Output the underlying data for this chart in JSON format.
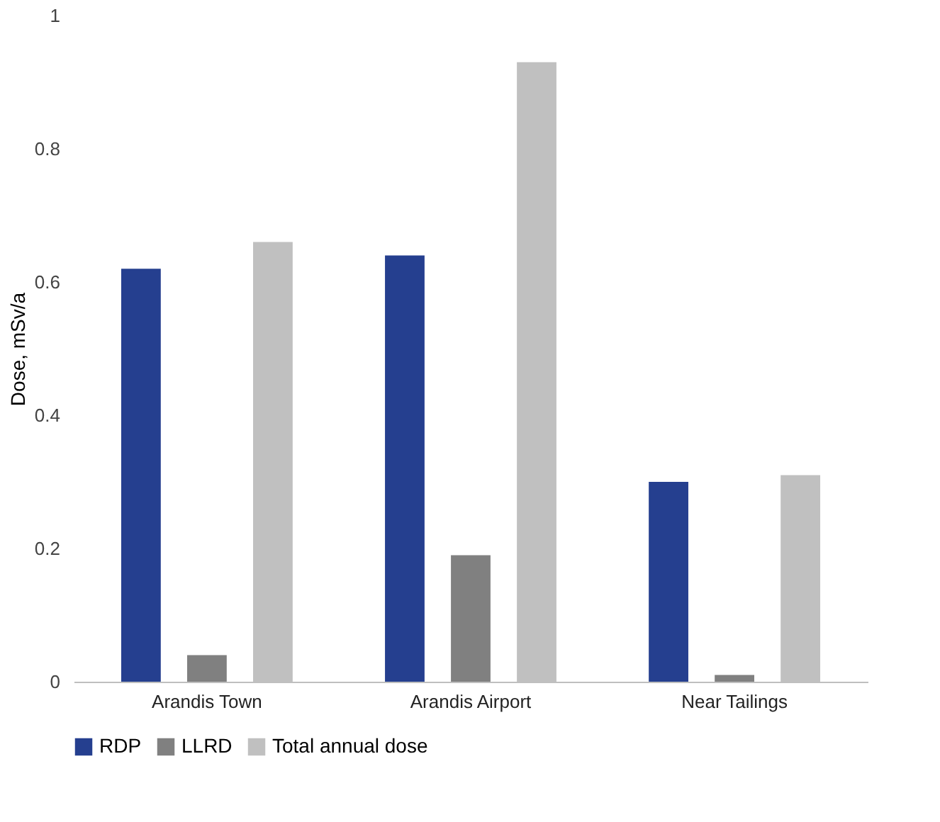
{
  "chart_data": {
    "type": "bar",
    "ylabel": "Dose, mSv/a",
    "categories": [
      "Arandis Town",
      "Arandis Airport",
      "Near Tailings"
    ],
    "series": [
      {
        "name": "RDP",
        "color": "#253f8f",
        "values": [
          0.62,
          0.64,
          0.3
        ]
      },
      {
        "name": "LLRD",
        "color": "#808080",
        "values": [
          0.04,
          0.19,
          0.01
        ]
      },
      {
        "name": "Total annual dose",
        "color": "#c0c0c0",
        "values": [
          0.66,
          0.93,
          0.31
        ]
      }
    ],
    "ylim": [
      0,
      1
    ],
    "yticks": [
      0,
      0.2,
      0.4,
      0.6,
      0.8,
      1
    ],
    "grid": false,
    "legend": "bottom"
  }
}
